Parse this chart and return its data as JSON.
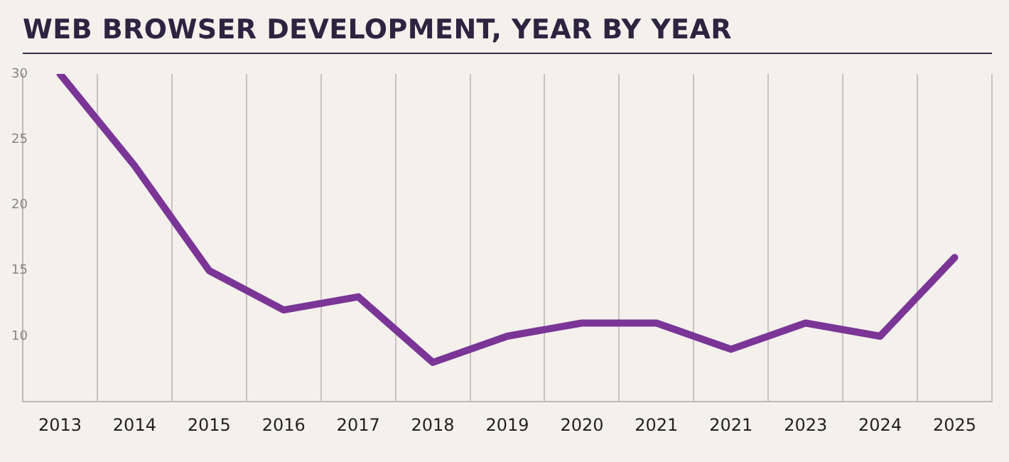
{
  "chart_data": {
    "type": "line",
    "title": "WEB BROWSER DEVELOPMENT, YEAR BY YEAR",
    "categories": [
      "2013",
      "2014",
      "2015",
      "2016",
      "2017",
      "2018",
      "2019",
      "2020",
      "2021",
      "2021",
      "2023",
      "2024",
      "2025"
    ],
    "series": [
      {
        "values": [
          30,
          23,
          15,
          12,
          13,
          8,
          10,
          11,
          11,
          9,
          11,
          10,
          16
        ],
        "color": "#7a3596"
      }
    ],
    "ylim": [
      5,
      30
    ],
    "yticks": [
      10,
      15,
      20,
      25,
      30
    ],
    "grid": "x",
    "legend": false,
    "marker": "none",
    "line_style": "solid"
  }
}
